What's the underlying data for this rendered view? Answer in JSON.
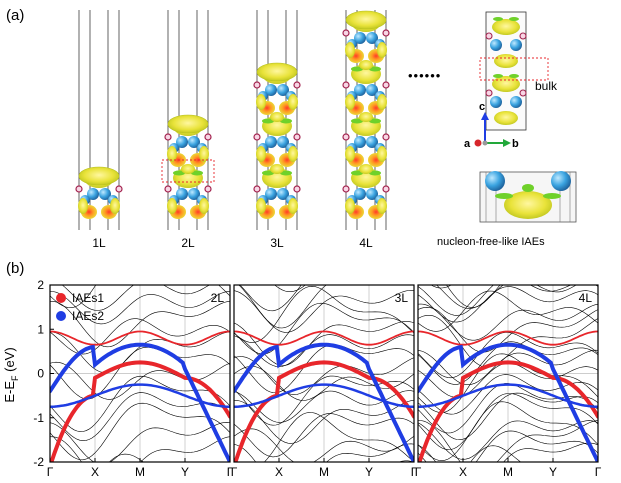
{
  "panel_a": {
    "label": "(a)",
    "structures": [
      {
        "label": "1L",
        "layers": 1
      },
      {
        "label": "2L",
        "layers": 2
      },
      {
        "label": "3L",
        "layers": 3
      },
      {
        "label": "4L",
        "layers": 4
      }
    ],
    "ellipsis": "••••••",
    "bulk_label": "bulk",
    "axes": {
      "c": "c",
      "a": "a",
      "b": "b"
    },
    "iae_caption": "nucleon-free-like IAEs"
  },
  "panel_b": {
    "label": "(b)",
    "ylabel": "E-E",
    "ylabel_sub": "F",
    "ylabel_unit": " (eV)",
    "legend": [
      {
        "name": "IAEs1",
        "color": "#e8262b"
      },
      {
        "name": "IAEs2",
        "color": "#1f3de3"
      }
    ],
    "colors": {
      "iae1": "#e8262b",
      "iae2": "#1f3de3",
      "band": "#000000",
      "grid": "#bdbdbd"
    }
  },
  "chart_data": [
    {
      "type": "line",
      "title": "2L",
      "xticks": [
        "Γ",
        "X",
        "M",
        "Y",
        "Γ"
      ],
      "ylim": [
        -2,
        2
      ],
      "yticks": [
        -2,
        -1,
        0,
        1,
        2
      ]
    },
    {
      "type": "line",
      "title": "3L",
      "xticks": [
        "Γ",
        "X",
        "M",
        "Y",
        "Γ"
      ],
      "ylim": [
        -2,
        2
      ]
    },
    {
      "type": "line",
      "title": "4L",
      "xticks": [
        "Γ",
        "X",
        "M",
        "Y",
        "Γ"
      ],
      "ylim": [
        -2,
        2
      ]
    }
  ]
}
